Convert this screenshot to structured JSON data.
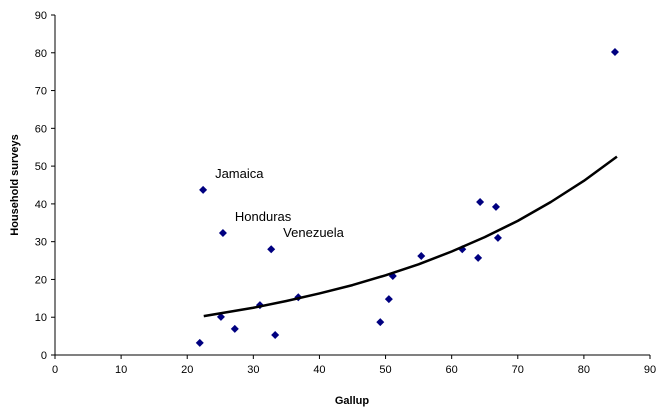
{
  "chart_data": {
    "type": "scatter",
    "x_label": "Gallup",
    "y_label": "Household surveys",
    "series": [
      {
        "color": "#000080",
        "x": [
          21.9,
          22.4,
          25.1,
          25.4,
          27.2,
          31.0,
          32.7,
          33.3,
          36.8,
          49.2,
          50.5,
          51.1,
          55.4,
          61.6,
          64.0,
          64.3,
          66.7,
          67.0,
          84.7
        ],
        "values": [
          3.2,
          43.7,
          10.1,
          32.3,
          6.9,
          13.2,
          28.0,
          5.3,
          15.3,
          8.7,
          14.8,
          20.9,
          26.2,
          28.0,
          25.7,
          40.5,
          39.2,
          31.0,
          80.2
        ],
        "point_labels": [
          null,
          "Jamaica",
          null,
          "Honduras",
          null,
          null,
          "Venezuela",
          null,
          null,
          null,
          null,
          null,
          null,
          null,
          null,
          null,
          null,
          null,
          null
        ]
      }
    ],
    "trendline": {
      "color": "#000000",
      "x": [
        22.5,
        30,
        35,
        40,
        45,
        50,
        55,
        60,
        65,
        70,
        75,
        80,
        85
      ],
      "values": [
        10.3,
        12.5,
        14.3,
        16.3,
        18.5,
        21.1,
        24.0,
        27.4,
        31.2,
        35.5,
        40.5,
        46.1,
        52.5
      ]
    },
    "xlim": [
      0,
      90
    ],
    "xticks": [
      0,
      10,
      20,
      30,
      40,
      50,
      60,
      70,
      80,
      90
    ],
    "ylim": [
      0,
      90
    ],
    "yticks": [
      0,
      10,
      20,
      30,
      40,
      50,
      60,
      70,
      80,
      90
    ],
    "grid": false
  }
}
